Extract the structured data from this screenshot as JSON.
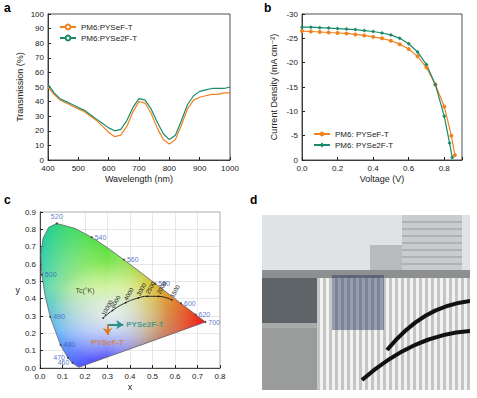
{
  "chart_data": [
    {
      "type": "line",
      "panel_label": "a",
      "xlabel": "Wavelength (nm)",
      "ylabel": "Transmission (%)",
      "x": [
        400,
        420,
        440,
        460,
        480,
        500,
        520,
        540,
        560,
        580,
        600,
        620,
        640,
        660,
        680,
        700,
        720,
        740,
        760,
        780,
        800,
        820,
        840,
        860,
        880,
        900,
        920,
        940,
        960,
        980,
        1000
      ],
      "series": [
        {
          "name": "PM6:PYSeF-T",
          "color": "#f0821e",
          "marker": "none",
          "values": [
            50,
            45,
            41,
            39,
            37,
            35,
            33,
            30,
            27,
            23,
            19,
            16,
            17,
            23,
            33,
            40,
            39,
            32,
            22,
            14,
            11,
            14,
            24,
            35,
            41,
            43,
            44,
            45,
            45,
            46,
            46
          ]
        },
        {
          "name": "PM6:PYSe2F-T",
          "color": "#1b8a6b",
          "marker": "none",
          "values": [
            52,
            46,
            42,
            40,
            38,
            36,
            34,
            31,
            28,
            25,
            22,
            20,
            21,
            27,
            36,
            42,
            41,
            35,
            26,
            18,
            14,
            17,
            27,
            38,
            44,
            47,
            48,
            49,
            49,
            49,
            50
          ]
        }
      ],
      "xlim": [
        400,
        1000
      ],
      "xticks": [
        400,
        500,
        600,
        700,
        800,
        900,
        1000
      ],
      "ylim": [
        0,
        100
      ],
      "yticks": [
        0,
        10,
        20,
        30,
        40,
        50,
        60,
        70,
        80,
        90,
        100
      ],
      "grid": false,
      "legend": "upper left"
    },
    {
      "type": "line",
      "panel_label": "b",
      "xlabel": "Voltage (V)",
      "ylabel": "Current Density (mA cm⁻²)",
      "series": [
        {
          "name": "PM6: PYSeF-T",
          "color": "#f0821e",
          "marker": "circle",
          "x": [
            0,
            0.05,
            0.1,
            0.15,
            0.2,
            0.25,
            0.3,
            0.35,
            0.4,
            0.45,
            0.5,
            0.55,
            0.6,
            0.65,
            0.7,
            0.75,
            0.8,
            0.84,
            0.86
          ],
          "values": [
            -26.5,
            -26.4,
            -26.3,
            -26.2,
            -26.1,
            -26.0,
            -25.8,
            -25.6,
            -25.3,
            -25.0,
            -24.5,
            -23.8,
            -22.8,
            -21.3,
            -19.0,
            -15.5,
            -11.0,
            -5.0,
            -1.0
          ]
        },
        {
          "name": "PM6: PYSe2F-T",
          "color": "#1b8a6b",
          "marker": "diamond",
          "x": [
            0,
            0.05,
            0.1,
            0.15,
            0.2,
            0.25,
            0.3,
            0.35,
            0.4,
            0.45,
            0.5,
            0.55,
            0.6,
            0.65,
            0.7,
            0.75,
            0.8,
            0.83,
            0.845
          ],
          "values": [
            -27.3,
            -27.3,
            -27.2,
            -27.1,
            -27.0,
            -26.9,
            -26.8,
            -26.6,
            -26.4,
            -26.1,
            -25.7,
            -25.0,
            -23.9,
            -22.2,
            -19.6,
            -15.5,
            -9.0,
            -3.5,
            -0.5
          ]
        }
      ],
      "xlim": [
        0,
        0.9
      ],
      "xticks": [
        {
          "value": 0,
          "label": "0.0"
        },
        {
          "value": 0.2,
          "label": "0.2"
        },
        {
          "value": 0.4,
          "label": "0.4"
        },
        {
          "value": 0.6,
          "label": "0.6"
        },
        {
          "value": 0.8,
          "label": "0.8"
        }
      ],
      "ylim": [
        0,
        -30
      ],
      "yticks": [
        -30,
        -25,
        -20,
        -15,
        -10,
        -5,
        0
      ],
      "grid": false,
      "legend": "lower left"
    },
    {
      "type": "chromaticity",
      "panel_label": "c",
      "xlabel": "x",
      "ylabel": "y",
      "locus": {
        "wavelength": [
          380,
          440,
          450,
          460,
          470,
          480,
          490,
          495,
          500,
          505,
          510,
          515,
          520,
          530,
          540,
          550,
          560,
          570,
          580,
          590,
          600,
          610,
          620,
          640,
          700
        ],
        "x": [
          0.1741,
          0.1644,
          0.1566,
          0.144,
          0.1241,
          0.0913,
          0.0454,
          0.0235,
          0.0082,
          0.0039,
          0.0139,
          0.0389,
          0.0743,
          0.1547,
          0.2296,
          0.3016,
          0.3731,
          0.4441,
          0.5125,
          0.5752,
          0.627,
          0.6658,
          0.6915,
          0.719,
          0.7347
        ],
        "y": [
          0.005,
          0.0109,
          0.0177,
          0.0297,
          0.0578,
          0.1327,
          0.295,
          0.4127,
          0.5384,
          0.6548,
          0.7502,
          0.812,
          0.8338,
          0.8059,
          0.7543,
          0.6923,
          0.6245,
          0.5547,
          0.4866,
          0.4242,
          0.3725,
          0.334,
          0.3083,
          0.2809,
          0.2653
        ]
      },
      "wavelength_labels": [
        460,
        470,
        480,
        490,
        500,
        520,
        540,
        560,
        580,
        600,
        620,
        700
      ],
      "planckian": {
        "temperatures": [
          10000,
          6000,
          4000,
          3000,
          2500,
          2000,
          1500
        ],
        "x": [
          0.2807,
          0.3221,
          0.3805,
          0.4369,
          0.477,
          0.5267,
          0.5857
        ],
        "y": [
          0.2884,
          0.3318,
          0.3768,
          0.4041,
          0.4137,
          0.4133,
          0.3931
        ]
      },
      "temperature_label": {
        "text": "Tc(°K)",
        "x": 0.2,
        "y": 0.45
      },
      "samples": [
        {
          "name": "PYSe2F-T",
          "color": "#2a8f86",
          "x": 0.3,
          "y": 0.25,
          "arrow_x": 0.37,
          "arrow_y": 0.25
        },
        {
          "name": "PYSeF-T",
          "color": "#e07a22",
          "x": 0.3,
          "y": 0.25,
          "arrow_x": 0.3,
          "arrow_y": 0.19
        }
      ],
      "xlim": [
        0,
        0.8
      ],
      "xticks": [
        {
          "value": 0,
          "label": "0.0"
        },
        {
          "value": 0.1,
          "label": "0.1"
        },
        {
          "value": 0.2,
          "label": "0.2"
        },
        {
          "value": 0.3,
          "label": "0.3"
        },
        {
          "value": 0.4,
          "label": "0.4"
        },
        {
          "value": 0.5,
          "label": "0.5"
        },
        {
          "value": 0.6,
          "label": "0.6"
        },
        {
          "value": 0.7,
          "label": "0.7"
        },
        {
          "value": 0.8,
          "label": "0.8"
        }
      ],
      "ylim": [
        0,
        0.9
      ],
      "yticks": [
        {
          "value": 0,
          "label": "0.0"
        },
        {
          "value": 0.1,
          "label": "0.1"
        },
        {
          "value": 0.2,
          "label": "0.2"
        },
        {
          "value": 0.3,
          "label": "0.3"
        },
        {
          "value": 0.4,
          "label": "0.4"
        },
        {
          "value": 0.5,
          "label": "0.5"
        },
        {
          "value": 0.6,
          "label": "0.6"
        },
        {
          "value": 0.7,
          "label": "0.7"
        },
        {
          "value": 0.8,
          "label": "0.8"
        },
        {
          "value": 0.9,
          "label": "0.9"
        }
      ],
      "grid": true
    }
  ],
  "photo": {
    "panel_label": "d"
  }
}
